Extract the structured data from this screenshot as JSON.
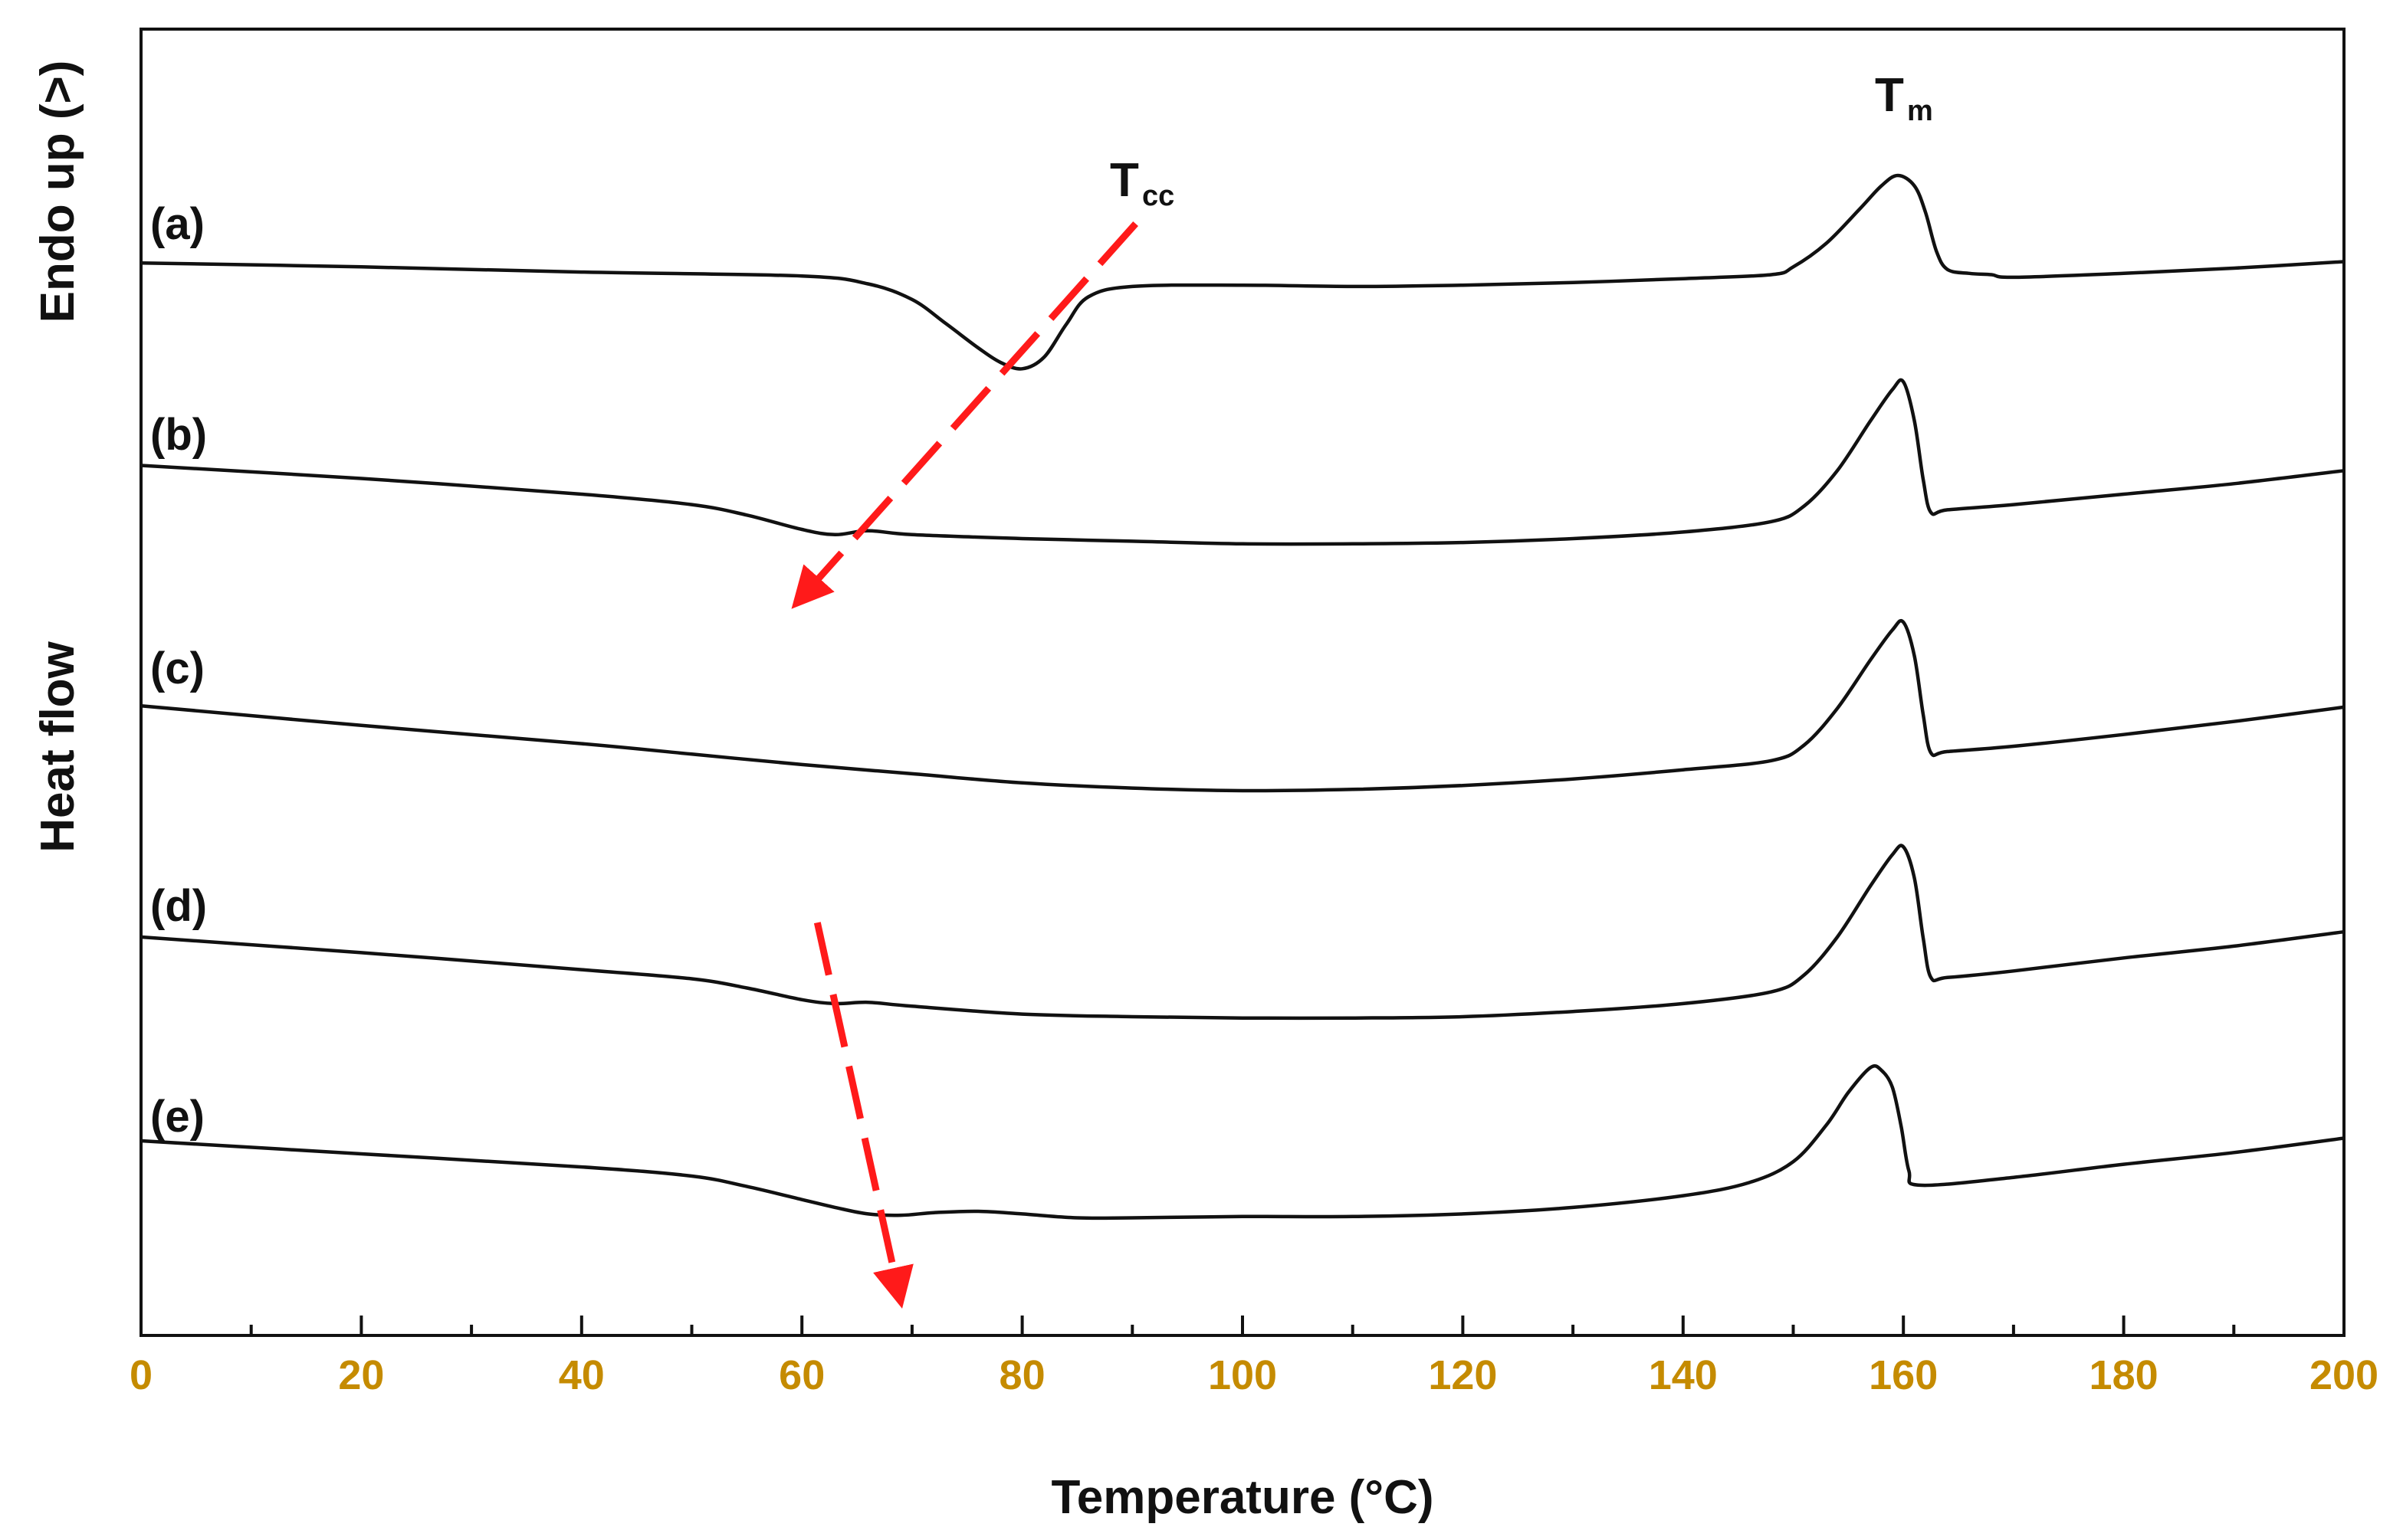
{
  "chart_data": {
    "type": "line",
    "title": "",
    "xlabel": "Temperature (°C)",
    "ylabel_top": "Endo up (>)",
    "ylabel_bottom": "Heat flow",
    "xlim": [
      0,
      200
    ],
    "xticks": [
      0,
      20,
      40,
      60,
      80,
      100,
      120,
      140,
      160,
      180,
      200
    ],
    "xtick_labels": [
      "0",
      "20",
      "40",
      "60",
      "80",
      "100",
      "120",
      "140",
      "160",
      "180",
      "200"
    ],
    "minor_tick_step": 10,
    "ylim": [
      0,
      100
    ],
    "grid": false,
    "tick_color": "#c58b00",
    "curve_color": "#111111",
    "arrow_color": "#ff1a1a",
    "series": [
      {
        "name": "(a)",
        "points": [
          [
            0,
            82.1
          ],
          [
            20,
            81.8
          ],
          [
            40,
            81.4
          ],
          [
            60,
            81.1
          ],
          [
            66,
            80.5
          ],
          [
            70,
            79.3
          ],
          [
            73,
            77.5
          ],
          [
            76,
            75.6
          ],
          [
            78,
            74.5
          ],
          [
            80,
            74.0
          ],
          [
            82,
            74.9
          ],
          [
            84,
            77.4
          ],
          [
            86,
            79.5
          ],
          [
            90,
            80.3
          ],
          [
            100,
            80.4
          ],
          [
            110,
            80.3
          ],
          [
            120,
            80.4
          ],
          [
            130,
            80.6
          ],
          [
            140,
            80.9
          ],
          [
            148,
            81.2
          ],
          [
            150,
            81.8
          ],
          [
            153,
            83.6
          ],
          [
            156,
            86.2
          ],
          [
            158,
            88.0
          ],
          [
            159.5,
            88.8
          ],
          [
            161,
            88.0
          ],
          [
            162,
            86.0
          ],
          [
            163,
            83.0
          ],
          [
            164,
            81.6
          ],
          [
            166,
            81.3
          ],
          [
            168,
            81.2
          ],
          [
            170,
            81.0
          ],
          [
            180,
            81.3
          ],
          [
            190,
            81.7
          ],
          [
            200,
            82.2
          ]
        ]
      },
      {
        "name": "(b)",
        "points": [
          [
            0,
            66.6
          ],
          [
            20,
            65.6
          ],
          [
            40,
            64.4
          ],
          [
            50,
            63.6
          ],
          [
            55,
            62.8
          ],
          [
            60,
            61.7
          ],
          [
            63,
            61.3
          ],
          [
            66,
            61.6
          ],
          [
            70,
            61.3
          ],
          [
            80,
            61.0
          ],
          [
            90,
            60.8
          ],
          [
            100,
            60.6
          ],
          [
            110,
            60.6
          ],
          [
            120,
            60.7
          ],
          [
            130,
            61.0
          ],
          [
            140,
            61.5
          ],
          [
            148,
            62.3
          ],
          [
            151,
            63.5
          ],
          [
            154,
            66.2
          ],
          [
            157,
            70.0
          ],
          [
            159,
            72.4
          ],
          [
            160,
            73.0
          ],
          [
            161,
            70.0
          ],
          [
            161.8,
            65.5
          ],
          [
            162.5,
            63.0
          ],
          [
            164,
            63.2
          ],
          [
            170,
            63.6
          ],
          [
            180,
            64.4
          ],
          [
            190,
            65.2
          ],
          [
            200,
            66.2
          ]
        ]
      },
      {
        "name": "(c)",
        "points": [
          [
            0,
            48.2
          ],
          [
            20,
            46.7
          ],
          [
            40,
            45.3
          ],
          [
            50,
            44.5
          ],
          [
            60,
            43.7
          ],
          [
            70,
            43.0
          ],
          [
            80,
            42.3
          ],
          [
            90,
            41.9
          ],
          [
            100,
            41.7
          ],
          [
            110,
            41.8
          ],
          [
            120,
            42.1
          ],
          [
            130,
            42.6
          ],
          [
            140,
            43.3
          ],
          [
            148,
            44.0
          ],
          [
            151,
            45.2
          ],
          [
            154,
            48.0
          ],
          [
            157,
            51.7
          ],
          [
            159,
            54.0
          ],
          [
            160,
            54.6
          ],
          [
            161,
            52.0
          ],
          [
            161.8,
            47.5
          ],
          [
            162.5,
            44.6
          ],
          [
            164,
            44.7
          ],
          [
            170,
            45.1
          ],
          [
            180,
            46.0
          ],
          [
            190,
            47.0
          ],
          [
            200,
            48.1
          ]
        ]
      },
      {
        "name": "(d)",
        "points": [
          [
            0,
            30.5
          ],
          [
            20,
            29.3
          ],
          [
            40,
            28.0
          ],
          [
            50,
            27.3
          ],
          [
            55,
            26.6
          ],
          [
            60,
            25.7
          ],
          [
            63,
            25.4
          ],
          [
            66,
            25.5
          ],
          [
            70,
            25.2
          ],
          [
            80,
            24.6
          ],
          [
            90,
            24.4
          ],
          [
            100,
            24.3
          ],
          [
            110,
            24.3
          ],
          [
            120,
            24.4
          ],
          [
            130,
            24.8
          ],
          [
            140,
            25.4
          ],
          [
            148,
            26.3
          ],
          [
            151,
            27.6
          ],
          [
            154,
            30.5
          ],
          [
            157,
            34.4
          ],
          [
            159,
            36.8
          ],
          [
            160,
            37.4
          ],
          [
            161,
            35.0
          ],
          [
            161.8,
            30.4
          ],
          [
            162.5,
            27.4
          ],
          [
            164,
            27.4
          ],
          [
            170,
            27.9
          ],
          [
            180,
            28.9
          ],
          [
            190,
            29.8
          ],
          [
            200,
            30.9
          ]
        ]
      },
      {
        "name": "(e)",
        "points": [
          [
            0,
            14.9
          ],
          [
            20,
            13.9
          ],
          [
            40,
            12.9
          ],
          [
            50,
            12.2
          ],
          [
            55,
            11.4
          ],
          [
            60,
            10.4
          ],
          [
            63,
            9.8
          ],
          [
            66,
            9.3
          ],
          [
            69,
            9.2
          ],
          [
            72,
            9.4
          ],
          [
            76,
            9.5
          ],
          [
            80,
            9.3
          ],
          [
            85,
            9.0
          ],
          [
            90,
            9.0
          ],
          [
            100,
            9.1
          ],
          [
            110,
            9.1
          ],
          [
            120,
            9.3
          ],
          [
            130,
            9.8
          ],
          [
            140,
            10.7
          ],
          [
            146,
            11.7
          ],
          [
            150,
            13.3
          ],
          [
            153,
            16.1
          ],
          [
            155,
            18.6
          ],
          [
            157,
            20.5
          ],
          [
            158,
            20.3
          ],
          [
            159,
            19.0
          ],
          [
            159.8,
            16.0
          ],
          [
            160.5,
            12.6
          ],
          [
            161.5,
            11.5
          ],
          [
            170,
            12.1
          ],
          [
            180,
            13.1
          ],
          [
            190,
            14.0
          ],
          [
            200,
            15.1
          ]
        ]
      }
    ],
    "annotations": [
      {
        "label": "T",
        "subscript": "cc",
        "x": 91,
        "y": 87.5
      },
      {
        "label": "T",
        "subscript": "m",
        "x": 159.8,
        "y": 94.4
      }
    ],
    "arrows": [
      {
        "name": "tcc-shift-arrow-upper",
        "from": [
          90.3,
          85.1
        ],
        "to": [
          60.3,
          56.8
        ]
      },
      {
        "name": "tcc-shift-arrow-lower",
        "from": [
          61.4,
          31.6
        ],
        "to": [
          68.7,
          3.6
        ]
      }
    ]
  }
}
